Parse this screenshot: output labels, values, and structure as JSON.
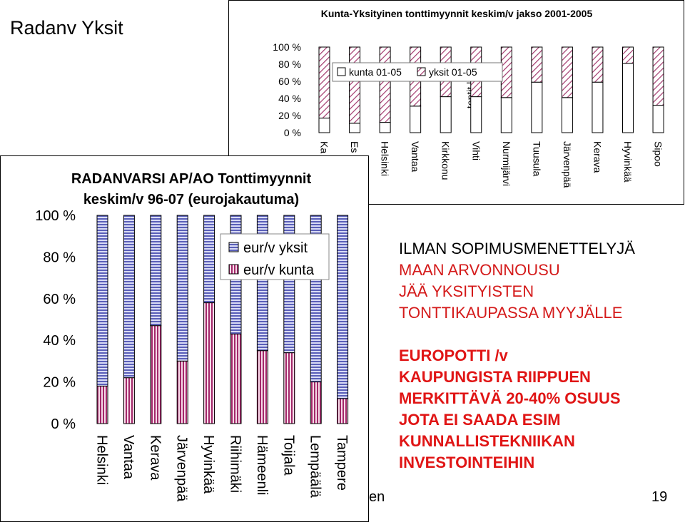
{
  "slide": {
    "title": "Radanv Yksit",
    "footer_fragment": "en",
    "page_number": "19"
  },
  "notes": {
    "block1": [
      "ILMAN SOPIMUSMENETTELYJÄ",
      "MAAN ARVONNOUSU",
      "JÄÄ YKSITYISTEN",
      "TONTTIKAUPASSA MYYJÄLLE"
    ],
    "block2": [
      "EUROPOTTI /v",
      "KAUPUNGISTA RIIPPUEN",
      "MERKITTÄVÄ 20-40% OSUUS",
      "JOTA EI SAADA ESIM",
      "KUNNALLISTEKNIIKAN",
      "INVESTOINTEIHIN"
    ]
  },
  "colors": {
    "kunta_fill": "#ffffff",
    "yksit_hatch": "#a33a6e",
    "eur_yksit_hatch": "#5a5fb8",
    "eur_kunta_hatch": "#a3286a",
    "note_red": "#e01515"
  },
  "chart_data": [
    {
      "type": "bar",
      "stacked": true,
      "percent": true,
      "title": "Kunta-Yksityinen tonttimyynnit keskim/v jakso 2001-2005",
      "ylabel": "tontit kpl",
      "ylim": [
        0,
        100
      ],
      "yticks": [
        "100 %",
        "80 %",
        "60 %",
        "40 %",
        "20 %",
        "0 %"
      ],
      "categories": [
        "Ka",
        "Es",
        "Helsinki",
        "Vantaa",
        "Kirkkonu",
        "Vihti",
        "Nurmijärvi",
        "Tuusula",
        "Järvenpää",
        "Kerava",
        "Hyvinkää",
        "Sipoo"
      ],
      "series": [
        {
          "name": "kunta 01-05",
          "values": [
            17,
            11,
            12,
            31,
            42,
            42,
            41,
            59,
            41,
            59,
            81,
            32
          ]
        },
        {
          "name": "yksit 01-05",
          "values": [
            83,
            89,
            88,
            69,
            58,
            58,
            59,
            41,
            59,
            41,
            19,
            68
          ]
        }
      ],
      "legend": "top"
    },
    {
      "type": "bar",
      "stacked": true,
      "percent": true,
      "title": "RADANVARSI AP/AO Tonttimyynnit keskim/v 96-07 (eurojakautuma)",
      "title_lines": [
        "RADANVARSI AP/AO Tonttimyynnit",
        "keskim/v 96-07 (eurojakautuma)"
      ],
      "ylim": [
        0,
        100
      ],
      "yticks": [
        "100 %",
        "80 %",
        "60 %",
        "40 %",
        "20 %",
        "0 %"
      ],
      "categories": [
        "Helsinki",
        "Vantaa",
        "Kerava",
        "Järvenpää",
        "Hyvinkää",
        "Riihimäki",
        "Hämeenli",
        "Toijala",
        "Lempäälä",
        "Tampere"
      ],
      "series": [
        {
          "name": "eur/v yksit",
          "values": [
            82,
            78,
            53,
            70,
            42,
            57,
            65,
            66,
            80,
            88
          ]
        },
        {
          "name": "eur/v kunta",
          "values": [
            18,
            22,
            47,
            30,
            58,
            43,
            35,
            34,
            20,
            12
          ]
        }
      ],
      "legend": "inside-right"
    }
  ]
}
